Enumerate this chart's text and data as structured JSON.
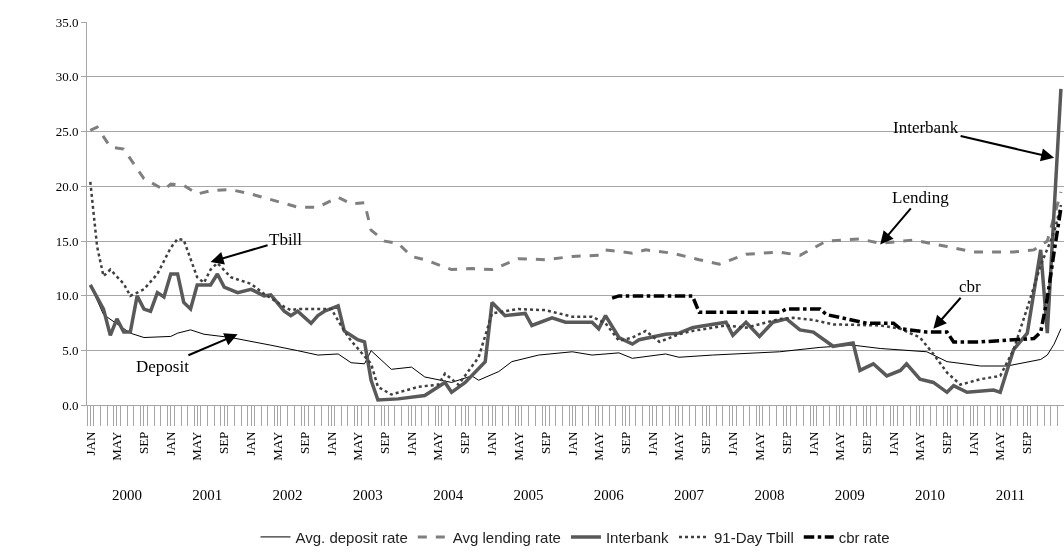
{
  "chart_data": {
    "type": "line",
    "ylim": [
      0,
      35
    ],
    "yticks": [
      {
        "value": 0,
        "label": "0.0"
      },
      {
        "value": 5,
        "label": "5.0"
      },
      {
        "value": 10,
        "label": "10.0"
      },
      {
        "value": 15,
        "label": "15.0"
      },
      {
        "value": 20,
        "label": "20.0"
      },
      {
        "value": 25,
        "label": "25.0"
      },
      {
        "value": 30,
        "label": "30.0"
      },
      {
        "value": 35,
        "label": "35.0"
      }
    ],
    "xlim": [
      "1999-12-17",
      "2012-02-15"
    ],
    "xticks": [
      {
        "value": "2000-01",
        "label": "JAN"
      },
      {
        "value": "2000-05",
        "label": "MAY"
      },
      {
        "value": "2000-09",
        "label": "SEP"
      },
      {
        "value": "2001-01",
        "label": "JAN"
      },
      {
        "value": "2001-05",
        "label": "MAY"
      },
      {
        "value": "2001-09",
        "label": "SEP"
      },
      {
        "value": "2002-01",
        "label": "JAN"
      },
      {
        "value": "2002-05",
        "label": "MAY"
      },
      {
        "value": "2002-09",
        "label": "SEP"
      },
      {
        "value": "2003-01",
        "label": "JAN"
      },
      {
        "value": "2003-05",
        "label": "MAY"
      },
      {
        "value": "2003-09",
        "label": "SEP"
      },
      {
        "value": "2004-01",
        "label": "JAN"
      },
      {
        "value": "2004-05",
        "label": "MAY"
      },
      {
        "value": "2004-09",
        "label": "SEP"
      },
      {
        "value": "2005-01",
        "label": "JAN"
      },
      {
        "value": "2005-05",
        "label": "MAY"
      },
      {
        "value": "2005-09",
        "label": "SEP"
      },
      {
        "value": "2006-01",
        "label": "JAN"
      },
      {
        "value": "2006-05",
        "label": "MAY"
      },
      {
        "value": "2006-09",
        "label": "SEP"
      },
      {
        "value": "2007-01",
        "label": "JAN"
      },
      {
        "value": "2007-05",
        "label": "MAY"
      },
      {
        "value": "2007-09",
        "label": "SEP"
      },
      {
        "value": "2008-01",
        "label": "JAN"
      },
      {
        "value": "2008-05",
        "label": "MAY"
      },
      {
        "value": "2008-09",
        "label": "SEP"
      },
      {
        "value": "2009-01",
        "label": "JAN"
      },
      {
        "value": "2009-05",
        "label": "MAY"
      },
      {
        "value": "2009-09",
        "label": "SEP"
      },
      {
        "value": "2010-01",
        "label": "JAN"
      },
      {
        "value": "2010-05",
        "label": "MAY"
      },
      {
        "value": "2010-09",
        "label": "SEP"
      },
      {
        "value": "2011-01",
        "label": "JAN"
      },
      {
        "value": "2011-05",
        "label": "MAY"
      },
      {
        "value": "2011-09",
        "label": "SEP"
      }
    ],
    "x2lim": [
      "1999-12-17",
      "2012-02-15"
    ],
    "x2ticks": [
      {
        "value": "2000-06-16",
        "label": "2000"
      },
      {
        "value": "2001-06-16",
        "label": "2001"
      },
      {
        "value": "2002-06-16",
        "label": "2002"
      },
      {
        "value": "2003-06-16",
        "label": "2003"
      },
      {
        "value": "2004-06-16",
        "label": "2004"
      },
      {
        "value": "2005-06-16",
        "label": "2005"
      },
      {
        "value": "2006-06-16",
        "label": "2006"
      },
      {
        "value": "2007-06-16",
        "label": "2007"
      },
      {
        "value": "2008-06-16",
        "label": "2008"
      },
      {
        "value": "2009-06-16",
        "label": "2009"
      },
      {
        "value": "2010-06-16",
        "label": "2010"
      },
      {
        "value": "2011-06-16",
        "label": "2011"
      }
    ],
    "grid": "y",
    "legend": "bottom",
    "marker": "none",
    "series": [
      {
        "name": "Avg. deposit rate",
        "color": "#000000",
        "line_style": "solid",
        "x": [
          "2000-01",
          "2000-03",
          "2000-07",
          "2000-09",
          "2001-01",
          "2001-02",
          "2001-04",
          "2001-06",
          "2001-10",
          "2002-04",
          "2002-08",
          "2002-11",
          "2003-02",
          "2003-04",
          "2003-06",
          "2003-07",
          "2003-10",
          "2004-01",
          "2004-03",
          "2004-07",
          "2004-10",
          "2004-11",
          "2005-02",
          "2005-04",
          "2005-08",
          "2006-01",
          "2006-04",
          "2006-08",
          "2006-10",
          "2007-03",
          "2007-05",
          "2007-10",
          "2008-08",
          "2009-02",
          "2009-07",
          "2009-11",
          "2010-06",
          "2010-09",
          "2011-02",
          "2011-06",
          "2011-11",
          "2011-12",
          "2012-01",
          "2012-02"
        ],
        "values": [
          11.0,
          8.3,
          6.6,
          6.2,
          6.3,
          6.6,
          6.9,
          6.5,
          6.2,
          5.5,
          5.0,
          4.6,
          4.7,
          3.9,
          3.8,
          5.0,
          3.3,
          3.5,
          2.6,
          2.1,
          2.7,
          2.3,
          3.1,
          4.0,
          4.6,
          4.9,
          4.6,
          4.8,
          4.3,
          4.7,
          4.4,
          4.6,
          4.9,
          5.3,
          5.5,
          5.2,
          4.9,
          4.0,
          3.6,
          3.6,
          4.2,
          4.6,
          5.6,
          7.0
        ]
      },
      {
        "name": "Avg lending rate",
        "color": "#7f7f7f",
        "line_style": "dashed",
        "x": [
          "2000-01",
          "2000-02",
          "2000-04",
          "2000-06",
          "2000-09",
          "2000-12",
          "2001-01",
          "2001-03",
          "2001-05",
          "2001-07",
          "2001-10",
          "2002-01",
          "2002-08",
          "2002-11",
          "2003-02",
          "2003-04",
          "2003-06",
          "2003-07",
          "2003-09",
          "2003-11",
          "2004-01",
          "2004-03",
          "2004-07",
          "2004-10",
          "2005-01",
          "2005-05",
          "2005-09",
          "2006-01",
          "2006-05",
          "2006-06",
          "2006-10",
          "2006-12",
          "2007-04",
          "2007-08",
          "2007-11",
          "2008-03",
          "2008-08",
          "2008-11",
          "2009-03",
          "2009-08",
          "2009-11",
          "2010-04",
          "2010-09",
          "2011-01",
          "2011-07",
          "2011-10",
          "2011-12",
          "2012-02"
        ],
        "values": [
          25.1,
          25.4,
          23.6,
          23.4,
          20.7,
          19.7,
          20.2,
          20.1,
          19.3,
          19.6,
          19.7,
          19.3,
          18.1,
          18.1,
          19.0,
          18.4,
          18.5,
          16.0,
          15.0,
          14.8,
          13.6,
          13.3,
          12.4,
          12.5,
          12.4,
          13.4,
          13.3,
          13.6,
          13.7,
          14.2,
          13.9,
          14.2,
          13.9,
          13.3,
          12.9,
          13.8,
          14.0,
          13.7,
          15.0,
          15.2,
          14.8,
          15.1,
          14.5,
          14.0,
          14.0,
          14.2,
          15.0,
          19.5
        ]
      },
      {
        "name": "Interbank",
        "color": "#595959",
        "line_style": "solid",
        "x": [
          "2000-01",
          "2000-03",
          "2000-04",
          "2000-05",
          "2000-06",
          "2000-07",
          "2000-08",
          "2000-09",
          "2000-10",
          "2000-11",
          "2000-12",
          "2001-01",
          "2001-02",
          "2001-03",
          "2001-04",
          "2001-05",
          "2001-07",
          "2001-08",
          "2001-09",
          "2001-11",
          "2002-01",
          "2002-03",
          "2002-04",
          "2002-06",
          "2002-07",
          "2002-08",
          "2002-10",
          "2002-11",
          "2002-12",
          "2003-02",
          "2003-03",
          "2003-05",
          "2003-06",
          "2003-07",
          "2003-08",
          "2003-11",
          "2004-03",
          "2004-06",
          "2004-07",
          "2004-09",
          "2004-12",
          "2005-01",
          "2005-03",
          "2005-06",
          "2005-07",
          "2005-10",
          "2005-12",
          "2006-04",
          "2006-05",
          "2006-06",
          "2006-08",
          "2006-10",
          "2006-11",
          "2007-03",
          "2007-05",
          "2007-07",
          "2007-08",
          "2007-12",
          "2008-01",
          "2008-03",
          "2008-05",
          "2008-07",
          "2008-09",
          "2008-11",
          "2009-01",
          "2009-04",
          "2009-07",
          "2009-08",
          "2009-10",
          "2009-12",
          "2010-02",
          "2010-03",
          "2010-05",
          "2010-07",
          "2010-09",
          "2010-10",
          "2010-12",
          "2011-04",
          "2011-05",
          "2011-07",
          "2011-09",
          "2011-11",
          "2011-12",
          "2012-02"
        ],
        "values": [
          11.0,
          8.8,
          6.4,
          7.9,
          6.7,
          6.7,
          10.0,
          8.8,
          8.6,
          10.3,
          9.9,
          12.0,
          12.0,
          9.4,
          8.8,
          11.0,
          11.0,
          12.0,
          10.8,
          10.3,
          10.6,
          10.0,
          10.1,
          8.6,
          8.2,
          8.6,
          7.5,
          8.2,
          8.6,
          9.1,
          6.8,
          6.0,
          5.8,
          2.3,
          0.5,
          0.6,
          0.9,
          2.1,
          1.2,
          2.1,
          4.0,
          9.4,
          8.2,
          8.4,
          7.3,
          8.0,
          7.6,
          7.6,
          7.0,
          8.2,
          6.2,
          5.6,
          6.0,
          6.5,
          6.6,
          7.1,
          7.2,
          7.6,
          6.4,
          7.6,
          6.3,
          7.6,
          7.9,
          6.9,
          6.7,
          5.4,
          5.7,
          3.2,
          3.8,
          2.7,
          3.2,
          3.8,
          2.4,
          2.1,
          1.2,
          1.8,
          1.2,
          1.4,
          1.2,
          5.1,
          6.6,
          14.2,
          6.6,
          28.9
        ]
      },
      {
        "name": "91-Day Tbill",
        "color": "#404040",
        "line_style": "dotted",
        "x": [
          "2000-01",
          "2000-02",
          "2000-03",
          "2000-04",
          "2000-06",
          "2000-07",
          "2000-09",
          "2000-11",
          "2001-01",
          "2001-02",
          "2001-03",
          "2001-05",
          "2001-06",
          "2001-07",
          "2001-08",
          "2001-10",
          "2002-01",
          "2002-03",
          "2002-06",
          "2002-07",
          "2002-08",
          "2003-01",
          "2003-03",
          "2003-04",
          "2003-07",
          "2003-08",
          "2003-10",
          "2004-02",
          "2004-05",
          "2004-06",
          "2004-08",
          "2004-11",
          "2005-01",
          "2005-05",
          "2005-09",
          "2006-01",
          "2006-04",
          "2006-06",
          "2006-08",
          "2006-10",
          "2006-12",
          "2007-02",
          "2007-05",
          "2007-07",
          "2007-12",
          "2008-03",
          "2008-08",
          "2008-10",
          "2009-01",
          "2009-04",
          "2009-11",
          "2010-02",
          "2010-05",
          "2010-07",
          "2010-09",
          "2010-11",
          "2011-02",
          "2011-05",
          "2011-07",
          "2011-09",
          "2011-11",
          "2012-01",
          "2012-02"
        ],
        "values": [
          20.4,
          14.5,
          11.8,
          12.4,
          11.1,
          10.0,
          10.6,
          12.0,
          14.4,
          15.2,
          15.1,
          11.7,
          11.2,
          12.4,
          13.0,
          11.7,
          11.1,
          10.2,
          9.0,
          8.7,
          8.8,
          8.8,
          6.8,
          5.9,
          3.8,
          1.7,
          1.0,
          1.7,
          1.9,
          2.9,
          1.9,
          4.4,
          8.4,
          8.8,
          8.7,
          8.1,
          8.1,
          7.5,
          5.9,
          6.2,
          6.8,
          5.8,
          6.5,
          6.8,
          7.3,
          7.1,
          7.9,
          8.0,
          7.8,
          7.4,
          7.3,
          7.0,
          6.2,
          4.7,
          3.0,
          1.9,
          2.4,
          2.7,
          5.1,
          8.9,
          12.8,
          15.8,
          18.3
        ]
      },
      {
        "name": "cbr rate",
        "color": "#000000",
        "line_style": "dashdot",
        "x": [
          "2006-07",
          "2006-08",
          "2007-07",
          "2007-08",
          "2008-08",
          "2008-09",
          "2009-02",
          "2009-03",
          "2009-09",
          "2010-01",
          "2010-02",
          "2010-06",
          "2010-09",
          "2010-10",
          "2011-02",
          "2011-07",
          "2011-10",
          "2011-11",
          "2011-12",
          "2012-01",
          "2012-02"
        ],
        "values": [
          9.8,
          10.0,
          10.0,
          8.5,
          8.5,
          8.8,
          8.8,
          8.3,
          7.5,
          7.5,
          7.0,
          6.7,
          6.7,
          5.8,
          5.8,
          6.0,
          6.1,
          6.7,
          9.8,
          14.0,
          18.0
        ]
      }
    ],
    "annotations": [
      {
        "text": "Tbill",
        "x": "2001-07",
        "y": 13.1
      },
      {
        "text": "Deposit",
        "x": "2001-11",
        "y": 6.5
      },
      {
        "text": "Lending",
        "x": "2009-11",
        "y": 14.7
      },
      {
        "text": "Interbank",
        "x": "2012-01",
        "y": 22.6
      },
      {
        "text": "cbr",
        "x": "2010-07",
        "y": 7.0
      }
    ]
  }
}
